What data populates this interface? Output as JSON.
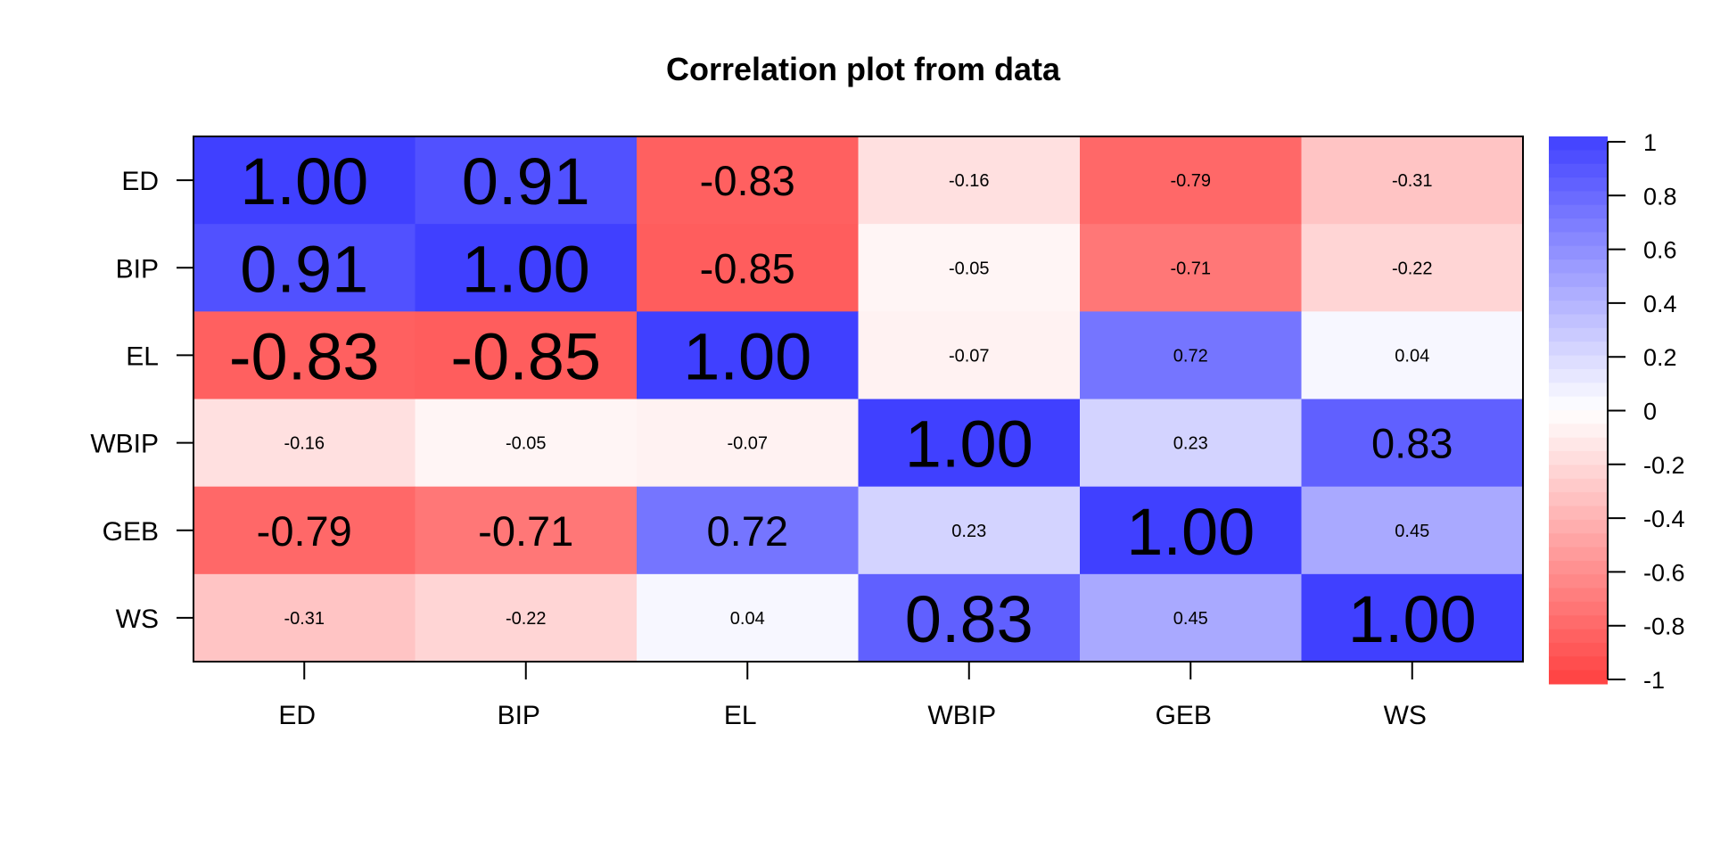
{
  "chart_data": {
    "type": "heatmap",
    "title": "Correlation plot from data",
    "xlabel": "",
    "ylabel": "",
    "variables": [
      "ED",
      "BIP",
      "EL",
      "WBIP",
      "GEB",
      "WS"
    ],
    "x_tick_labels": [
      "ED",
      "BIP",
      "EL",
      "WBIP",
      "GEB",
      "WS"
    ],
    "y_tick_labels": [
      "ED",
      "BIP",
      "EL",
      "WBIP",
      "GEB",
      "WS"
    ],
    "matrix": [
      [
        1.0,
        0.91,
        -0.83,
        -0.16,
        -0.79,
        -0.31
      ],
      [
        0.91,
        1.0,
        -0.85,
        -0.05,
        -0.71,
        -0.22
      ],
      [
        -0.83,
        -0.85,
        1.0,
        -0.07,
        0.72,
        0.04
      ],
      [
        -0.16,
        -0.05,
        -0.07,
        1.0,
        0.23,
        0.83
      ],
      [
        -0.79,
        -0.71,
        0.72,
        0.23,
        1.0,
        0.45
      ],
      [
        -0.31,
        -0.22,
        0.04,
        0.83,
        0.45,
        1.0
      ]
    ],
    "cell_labels": [
      [
        "1.00",
        "0.91",
        "-0.83",
        "-0.16",
        "-0.79",
        "-0.31"
      ],
      [
        "0.91",
        "1.00",
        "-0.85",
        "-0.05",
        "-0.71",
        "-0.22"
      ],
      [
        "-0.83",
        "-0.85",
        "1.00",
        "-0.07",
        "0.72",
        "0.04"
      ],
      [
        "-0.16",
        "-0.05",
        "-0.07",
        "1.00",
        "0.23",
        "0.83"
      ],
      [
        "-0.79",
        "-0.71",
        "0.72",
        "0.23",
        "1.00",
        "0.45"
      ],
      [
        "-0.31",
        "-0.22",
        "0.04",
        "0.83",
        "0.45",
        "1.00"
      ]
    ],
    "color_scale": {
      "range": [
        -1,
        1
      ],
      "low_color": "#FF4040",
      "mid_color": "#FFFFFF",
      "high_color": "#4040FF",
      "ticks": [
        1,
        0.8,
        0.6,
        0.4,
        0.2,
        0,
        -0.2,
        -0.4,
        -0.6,
        -0.8,
        -1
      ],
      "tick_labels": [
        "1",
        "0.8",
        "0.6",
        "0.4",
        "0.2",
        "0",
        "-0.2",
        "-0.4",
        "-0.6",
        "-0.8",
        "-1"
      ]
    },
    "legend": "right",
    "grid": false
  }
}
